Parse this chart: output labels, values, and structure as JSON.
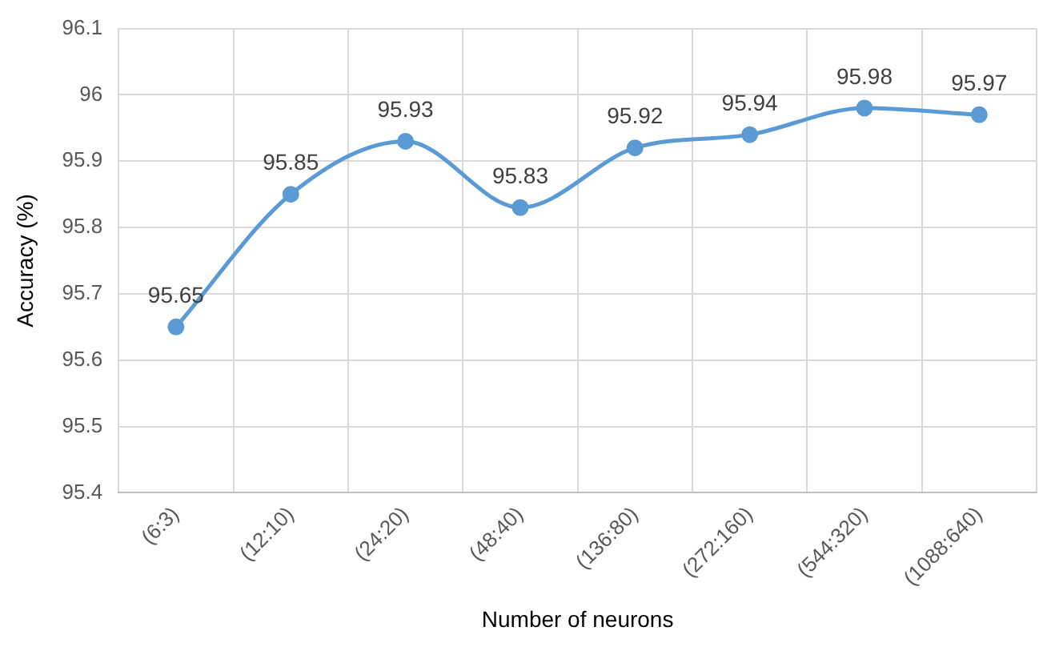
{
  "chart_data": {
    "type": "line",
    "xlabel": "Number of neurons",
    "ylabel": "Accuracy (%)",
    "categories": [
      "(6:3)",
      "(12:10)",
      "(24:20)",
      "(48:40)",
      "(136:80)",
      "(272:160)",
      "(544:320)",
      "(1088:640)"
    ],
    "series": [
      {
        "color": "#5b9bd5",
        "values": [
          95.65,
          95.85,
          95.93,
          95.83,
          95.92,
          95.94,
          95.98,
          95.97
        ]
      }
    ],
    "ylim": [
      95.4,
      96.1
    ],
    "yticks": [
      95.4,
      95.5,
      95.6,
      95.7,
      95.8,
      95.9,
      96,
      96.1
    ],
    "grid": true,
    "legend": false,
    "marker": "circle",
    "line_style": "solid",
    "data_labels": true
  }
}
